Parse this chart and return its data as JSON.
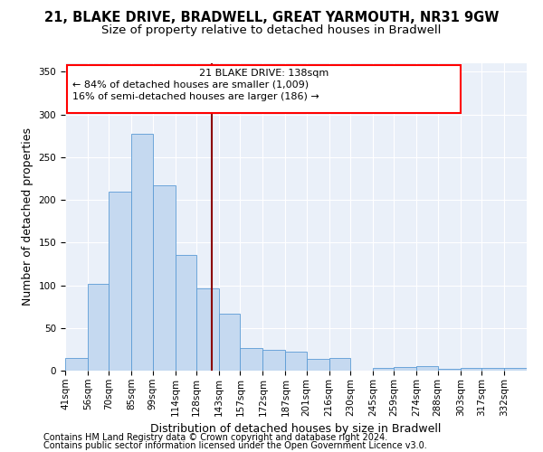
{
  "title1": "21, BLAKE DRIVE, BRADWELL, GREAT YARMOUTH, NR31 9GW",
  "title2": "Size of property relative to detached houses in Bradwell",
  "xlabel": "Distribution of detached houses by size in Bradwell",
  "ylabel": "Number of detached properties",
  "footer1": "Contains HM Land Registry data © Crown copyright and database right 2024.",
  "footer2": "Contains public sector information licensed under the Open Government Licence v3.0.",
  "annotation_line1": "21 BLAKE DRIVE: 138sqm",
  "annotation_line2": "← 84% of detached houses are smaller (1,009)",
  "annotation_line3": "16% of semi-detached houses are larger (186) →",
  "bar_color": "#c5d9f0",
  "bar_edge_color": "#5b9bd5",
  "redline_x": 138,
  "categories": [
    "41sqm",
    "56sqm",
    "70sqm",
    "85sqm",
    "99sqm",
    "114sqm",
    "128sqm",
    "143sqm",
    "157sqm",
    "172sqm",
    "187sqm",
    "201sqm",
    "216sqm",
    "230sqm",
    "245sqm",
    "259sqm",
    "274sqm",
    "288sqm",
    "303sqm",
    "317sqm",
    "332sqm"
  ],
  "values": [
    15,
    102,
    210,
    277,
    217,
    136,
    96,
    67,
    26,
    24,
    22,
    14,
    15,
    0,
    3,
    4,
    5,
    2,
    3,
    3,
    3
  ],
  "bin_edges": [
    41,
    56,
    70,
    85,
    99,
    114,
    128,
    143,
    157,
    172,
    187,
    201,
    216,
    230,
    245,
    259,
    274,
    288,
    303,
    317,
    332,
    347
  ],
  "ylim": [
    0,
    360
  ],
  "yticks": [
    0,
    50,
    100,
    150,
    200,
    250,
    300,
    350
  ],
  "bg_color": "#eaf0f9",
  "grid_color": "#ffffff",
  "title1_fontsize": 10.5,
  "title2_fontsize": 9.5,
  "axis_label_fontsize": 9,
  "tick_fontsize": 7.5,
  "footer_fontsize": 7,
  "annot_fontsize": 8
}
